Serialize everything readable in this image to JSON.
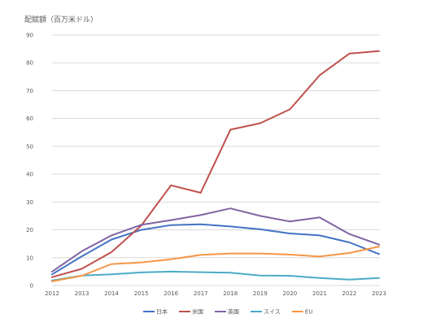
{
  "chart_data": {
    "type": "line",
    "ylabel": "配賦額（百万米ドル）",
    "xlabel": "",
    "title": "",
    "x": [
      "2012",
      "2013",
      "2014",
      "2015",
      "2016",
      "2017",
      "2018",
      "2019",
      "2020",
      "2021",
      "2022",
      "2023"
    ],
    "ylim": [
      0,
      90
    ],
    "yticks": [
      0,
      10,
      20,
      30,
      40,
      50,
      60,
      70,
      80,
      90
    ],
    "grid": "horizontal",
    "legend_position": "bottom",
    "series": [
      {
        "name": "日本",
        "color": "#4472C4",
        "values": [
          4.0,
          10.5,
          16.5,
          20.0,
          21.7,
          22.0,
          21.2,
          20.2,
          18.7,
          18.0,
          15.5,
          11.3
        ]
      },
      {
        "name": "米国",
        "color": "#C0504D",
        "values": [
          3.0,
          6.0,
          12.0,
          21.5,
          36.0,
          33.3,
          56.0,
          58.3,
          63.3,
          75.5,
          83.3,
          84.2
        ]
      },
      {
        "name": "英国",
        "color": "#8064A2",
        "values": [
          5.0,
          12.3,
          18.0,
          21.8,
          23.5,
          25.3,
          27.7,
          25.0,
          23.0,
          24.5,
          18.5,
          14.7
        ]
      },
      {
        "name": "スイス",
        "color": "#4BACC6",
        "values": [
          1.8,
          3.6,
          4.0,
          4.7,
          5.0,
          4.8,
          4.6,
          3.6,
          3.5,
          2.7,
          2.1,
          2.7
        ]
      },
      {
        "name": "EU",
        "color": "#F79646",
        "values": [
          1.5,
          3.5,
          7.7,
          8.3,
          9.4,
          11.0,
          11.5,
          11.5,
          11.1,
          10.4,
          11.7,
          14.0
        ]
      }
    ]
  }
}
